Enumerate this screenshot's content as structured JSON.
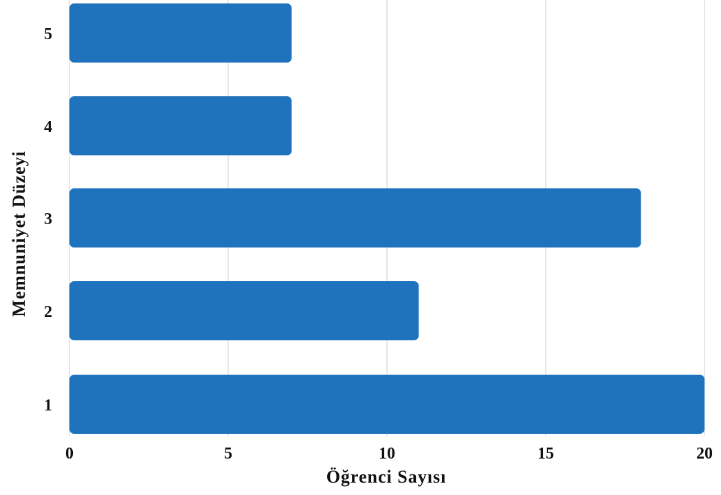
{
  "chart_data": {
    "type": "bar",
    "orientation": "horizontal",
    "categories": [
      "1",
      "2",
      "3",
      "4",
      "5"
    ],
    "values": [
      20,
      11,
      18,
      7,
      7
    ],
    "xlabel": "Öğrenci Sayısı",
    "ylabel": "Memnuniyet Düzeyi",
    "xlim": [
      0,
      20
    ],
    "xticks": [
      "0",
      "5",
      "10",
      "15",
      "20"
    ],
    "grid": true,
    "bar_color": "#1f73bd",
    "grid_color": "#d9d9d9"
  }
}
